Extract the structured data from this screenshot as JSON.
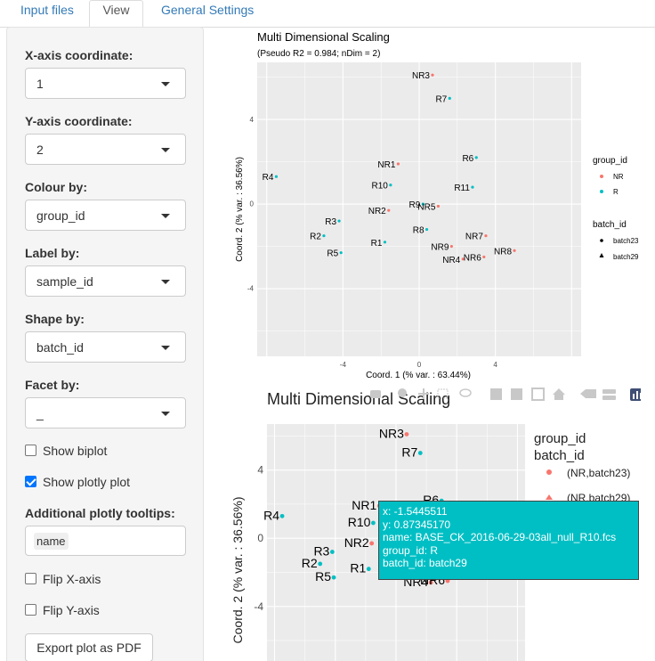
{
  "tabs": [
    {
      "label": "Input files"
    },
    {
      "label": "View"
    },
    {
      "label": "General Settings"
    }
  ],
  "sidebar": {
    "x_axis": {
      "label": "X-axis coordinate:",
      "value": "1"
    },
    "y_axis": {
      "label": "Y-axis coordinate:",
      "value": "2"
    },
    "colour_by": {
      "label": "Colour by:",
      "value": "group_id"
    },
    "label_by": {
      "label": "Label by:",
      "value": "sample_id"
    },
    "shape_by": {
      "label": "Shape by:",
      "value": "batch_id"
    },
    "facet_by": {
      "label": "Facet by:",
      "value": "_"
    },
    "show_biplot": {
      "label": "Show biplot",
      "checked": false
    },
    "show_plotly": {
      "label": "Show plotly plot",
      "checked": true
    },
    "tooltips": {
      "label": "Additional plotly tooltips:",
      "tag": "name"
    },
    "flip_x": {
      "label": "Flip X-axis",
      "checked": false
    },
    "flip_y": {
      "label": "Flip Y-axis",
      "checked": false
    },
    "export_label": "Export plot as PDF"
  },
  "colors": {
    "NR": "#f8766d",
    "R": "#00bfc4",
    "panel": "#ebebeb",
    "active_tab_text": "#555555",
    "link": "#337ab7"
  },
  "icons": [
    "camera-icon",
    "zoom-icon",
    "pan-icon",
    "box-select-icon",
    "lasso-icon",
    "zoom-in-icon",
    "zoom-out-icon",
    "autoscale-icon",
    "home-icon",
    "spike-lines-icon",
    "hover-closest-icon",
    "hover-compare-icon",
    "plotly-logo-icon"
  ],
  "tooltip": {
    "x": "x: -1.5445511",
    "y": "y:  0.87345170",
    "name": "name: BASE_CK_2016-06-29-03all_null_R10.fcs",
    "group": "group_id: R",
    "batch": "batch_id: batch29"
  },
  "chart_data": [
    {
      "type": "scatter",
      "title": "Multi Dimensional Scaling",
      "subtitle": "(Pseudo R2 = 0.984; nDim = 2)",
      "xlabel": "Coord. 1 (% var. : 63.44%)",
      "ylabel": "Coord. 2 (% var. : 36.56%)",
      "xlim": [
        -8.5,
        8.5
      ],
      "ylim": [
        -7.2,
        6.7
      ],
      "xticks": [
        -4,
        0,
        4
      ],
      "yticks": [
        -4,
        0,
        4
      ],
      "grid": true,
      "legend_position": "right",
      "legend": {
        "group_title": "group_id",
        "groups": [
          "NR",
          "R"
        ],
        "batch_title": "batch_id",
        "batches": [
          "batch23",
          "batch29"
        ]
      },
      "points": [
        {
          "label": "NR3",
          "x": 0.7,
          "y": 6.1,
          "group": "NR"
        },
        {
          "label": "R7",
          "x": 1.6,
          "y": 5.0,
          "group": "R"
        },
        {
          "label": "R6",
          "x": 3.0,
          "y": 2.2,
          "group": "R"
        },
        {
          "label": "NR1",
          "x": -1.1,
          "y": 1.9,
          "group": "NR"
        },
        {
          "label": "R4",
          "x": -7.5,
          "y": 1.3,
          "group": "R"
        },
        {
          "label": "R10",
          "x": -1.5,
          "y": 0.9,
          "group": "R"
        },
        {
          "label": "R11",
          "x": 2.8,
          "y": 0.8,
          "group": "R"
        },
        {
          "label": "R9",
          "x": 0.2,
          "y": 0.0,
          "group": "R"
        },
        {
          "label": "NR5",
          "x": 1.0,
          "y": -0.1,
          "group": "NR"
        },
        {
          "label": "NR2",
          "x": -1.6,
          "y": -0.3,
          "group": "NR"
        },
        {
          "label": "R3",
          "x": -4.2,
          "y": -0.8,
          "group": "R"
        },
        {
          "label": "R8",
          "x": 0.4,
          "y": -1.2,
          "group": "R"
        },
        {
          "label": "R2",
          "x": -5.0,
          "y": -1.5,
          "group": "R"
        },
        {
          "label": "NR7",
          "x": 3.5,
          "y": -1.5,
          "group": "NR"
        },
        {
          "label": "R1",
          "x": -1.8,
          "y": -1.8,
          "group": "R"
        },
        {
          "label": "NR9",
          "x": 1.7,
          "y": -2.0,
          "group": "NR"
        },
        {
          "label": "NR8",
          "x": 5.0,
          "y": -2.2,
          "group": "NR"
        },
        {
          "label": "R5",
          "x": -4.1,
          "y": -2.3,
          "group": "R"
        },
        {
          "label": "NR4",
          "x": 2.3,
          "y": -2.6,
          "group": "NR"
        },
        {
          "label": "NR6",
          "x": 3.4,
          "y": -2.5,
          "group": "NR"
        }
      ]
    },
    {
      "type": "scatter",
      "title": "Multi Dimensional Scaling",
      "ylabel": "Coord. 2 (% var. : 36.56%)",
      "yticks": [
        -4,
        0,
        4
      ],
      "legend": {
        "title1": "group_id",
        "title2": "batch_id",
        "entries": [
          "(NR,batch23)",
          "(NR,batch29)"
        ]
      }
    }
  ]
}
